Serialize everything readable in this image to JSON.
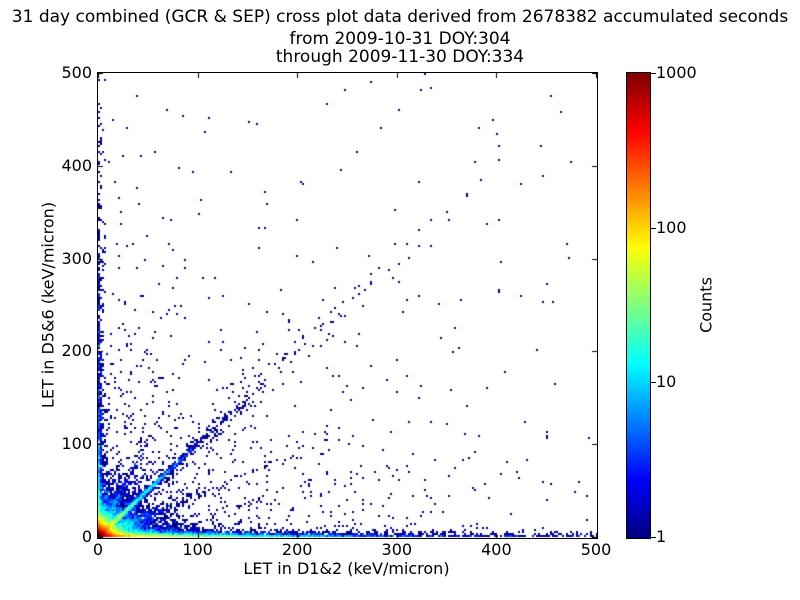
{
  "chart_data": {
    "type": "scatter",
    "subtype": "2d-histogram-density-crossplot",
    "title_lines": [
      "31 day combined (GCR & SEP) cross plot data derived from 2678382 accumulated seconds",
      "from 2009-10-31 DOY:304",
      "through 2009-11-30 DOY:334"
    ],
    "accumulated_seconds": 2678382,
    "date_from": "2009-10-31",
    "doy_from": 304,
    "date_through": "2009-11-30",
    "doy_through": 334,
    "xlabel": "LET in D1&2 (keV/micron)",
    "ylabel": "LET in D5&6 (keV/micron)",
    "xlim": [
      0,
      500
    ],
    "ylim": [
      0,
      500
    ],
    "x_ticks": [
      0,
      100,
      200,
      300,
      400,
      500
    ],
    "y_ticks": [
      0,
      100,
      200,
      300,
      400,
      500
    ],
    "grid": false,
    "background": "#ffffff",
    "axis_color": "#000000",
    "single_count_point_color": "#000080",
    "colorbar": {
      "label": "Counts",
      "scale": "log",
      "range": [
        1,
        1000
      ],
      "ticks": [
        1,
        10,
        100,
        1000
      ],
      "colormap": "jet",
      "colormap_stops": [
        "#000080",
        "#0000ff",
        "#00d4ff",
        "#54ff9f",
        "#d4ff00",
        "#ff9400",
        "#ff1500",
        "#800000"
      ]
    },
    "description": "Log-scaled 2D density of LET coincidence counts: a hot cluster (counts up to ~1000, dark red) at the origin; a dense band along y≈0 fading from red/yellow/green near x=0 to sparse blue by x≈400; a thinner band up the x≈0 edge; a bright diagonal streak y≈x out to ~120 keV/micron with a sparse diagonal continuation to ~300; fainter rays above and below the diagonal; isolated single-count (navy) points scattered over the full 0-500 range.",
    "density_model": {
      "seed": 20091031,
      "bin_size_px": 2,
      "components": [
        {
          "name": "hot-core",
          "type": "exp2d",
          "n": 15000,
          "x_scale": 5.5,
          "y_scale": 5
        },
        {
          "name": "core-halo",
          "type": "exp2d",
          "n": 6000,
          "x_scale": 18,
          "y_scale": 14
        },
        {
          "name": "bottom-band",
          "type": "exp2d",
          "n": 5500,
          "x_scale": 70,
          "y_scale": 1.8
        },
        {
          "name": "bottom-band-far",
          "type": "exp2d",
          "n": 1200,
          "x_scale": 220,
          "y_scale": 2.2
        },
        {
          "name": "left-band",
          "type": "exp2d",
          "n": 900,
          "x_scale": 1.8,
          "y_scale": 90
        },
        {
          "name": "left-band-far",
          "type": "exp2d",
          "n": 220,
          "x_scale": 2.2,
          "y_scale": 260
        },
        {
          "name": "diagonal-streak",
          "type": "ray",
          "n": 2600,
          "slope": 1.0,
          "x_scale": 28,
          "sigma": 1.5
        },
        {
          "name": "diagonal-streak-far",
          "type": "ray",
          "n": 280,
          "slope": 1.0,
          "x_scale": 110,
          "sigma": 8
        },
        {
          "name": "ray-below-diagonal",
          "type": "ray",
          "n": 420,
          "slope": 0.45,
          "x_scale": 40,
          "sigma": 2.5
        },
        {
          "name": "ray-above-diagonal",
          "type": "ray",
          "n": 320,
          "slope": 2.05,
          "x_scale": 16,
          "sigma": 2.5
        },
        {
          "name": "mid-scatter",
          "type": "exp2d",
          "n": 900,
          "x_scale": 120,
          "y_scale": 95
        },
        {
          "name": "uniform-sparse",
          "type": "uniform",
          "n": 80,
          "x_max": 500,
          "y_max": 500
        }
      ]
    },
    "outlier_points": [
      [
        230,
        467
      ],
      [
        302,
        460
      ],
      [
        285,
        441
      ],
      [
        152,
        448
      ],
      [
        260,
        415
      ],
      [
        378,
        404
      ],
      [
        167,
        371
      ],
      [
        82,
        398
      ],
      [
        35,
        316
      ],
      [
        24,
        338
      ],
      [
        298,
        352
      ],
      [
        273,
        302
      ],
      [
        240,
        312
      ],
      [
        215,
        296
      ],
      [
        310,
        256
      ],
      [
        345,
        215
      ],
      [
        390,
        160
      ],
      [
        430,
        82
      ],
      [
        455,
        57
      ],
      [
        300,
        190
      ],
      [
        350,
        122
      ],
      [
        225,
        255
      ]
    ]
  }
}
